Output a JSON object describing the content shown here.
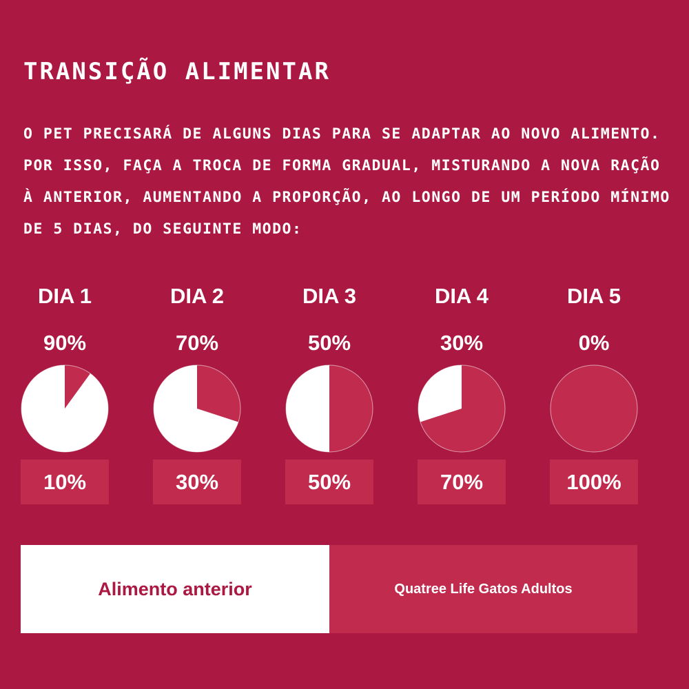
{
  "title": "TRANSIÇÃO ALIMENTAR",
  "intro_lines": [
    "O PET PRECISARÁ DE ALGUNS DIAS PARA SE ADAPTAR AO NOVO ALIMENTO.",
    "POR ISSO, FAÇA A TROCA DE FORMA GRADUAL, MISTURANDO A NOVA RAÇÃO",
    "À ANTERIOR, AUMENTANDO A PROPORÇÃO, AO LONGO DE UM PERÍODO MÍNIMO",
    "DE 5 DIAS, DO SEGUINTE MODO:"
  ],
  "colors": {
    "background": "#ab1842",
    "new_food": "#c02b4e",
    "old_food": "#ffffff"
  },
  "legend": {
    "old_label": "Alimento anterior",
    "new_label": "Quatree Life Gatos Adultos"
  },
  "chart_data": {
    "type": "pie",
    "categories": [
      "DIA 1",
      "DIA 2",
      "DIA 3",
      "DIA 4",
      "DIA 5"
    ],
    "series": [
      {
        "name": "Alimento anterior",
        "values": [
          90,
          70,
          50,
          30,
          0
        ],
        "labels": [
          "90%",
          "70%",
          "50%",
          "30%",
          "0%"
        ]
      },
      {
        "name": "Quatree Life Gatos Adultos",
        "values": [
          10,
          30,
          50,
          70,
          100
        ],
        "labels": [
          "10%",
          "30%",
          "50%",
          "70%",
          "100%"
        ]
      }
    ]
  }
}
